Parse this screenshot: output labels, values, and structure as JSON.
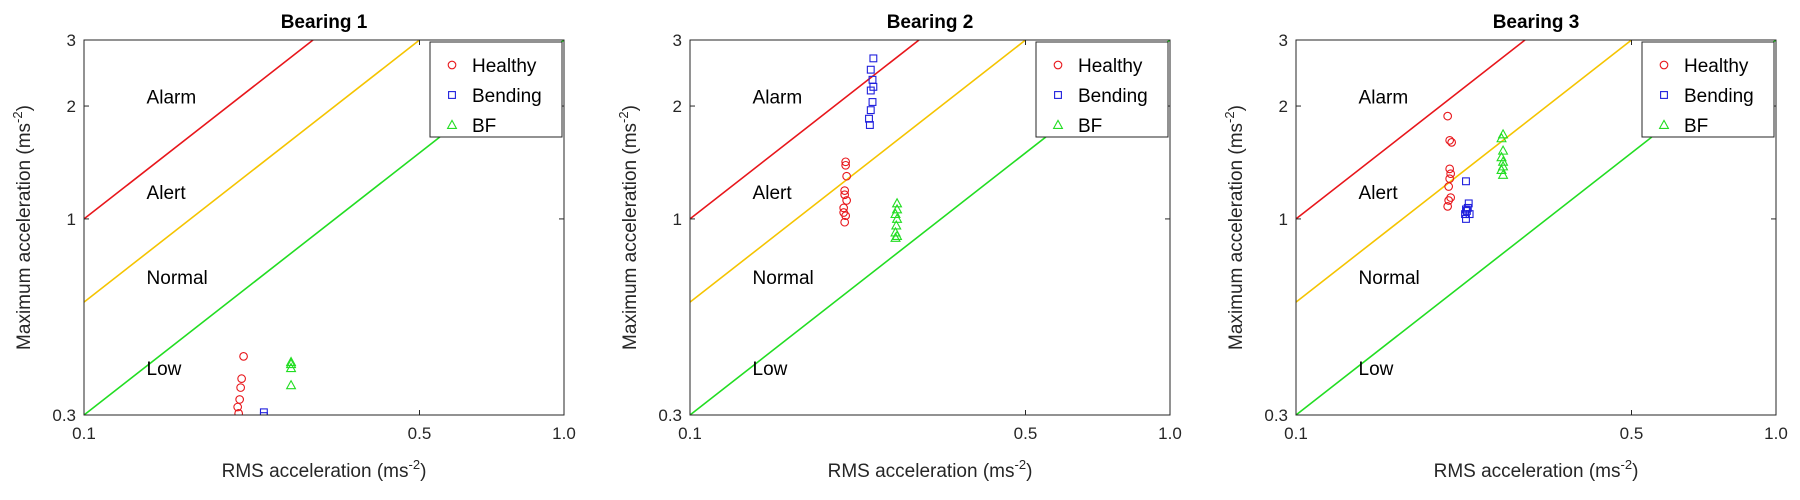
{
  "chart_data": [
    {
      "type": "scatter",
      "title": "Bearing 1",
      "xlabel": "RMS acceleration (ms",
      "ylabel": "Maximum acceleration (ms",
      "unit_exponent": "-2",
      "x_scale": "log",
      "y_scale": "log",
      "xlim": [
        0.1,
        1.0
      ],
      "ylim": [
        0.3,
        3
      ],
      "x_ticks": [
        0.1,
        0.5,
        1.0
      ],
      "x_tick_labels": [
        "0.1",
        "0.5",
        "1.0"
      ],
      "y_ticks": [
        0.3,
        1,
        2,
        3
      ],
      "y_tick_labels": [
        "0.3",
        "1",
        "2",
        "3"
      ],
      "legend_position": "top-right",
      "zone_labels": [
        {
          "text": "Alarm",
          "x": 0.135,
          "y": 2.12
        },
        {
          "text": "Alert",
          "x": 0.135,
          "y": 1.18
        },
        {
          "text": "Normal",
          "x": 0.135,
          "y": 0.7
        },
        {
          "text": "Low",
          "x": 0.135,
          "y": 0.4
        }
      ],
      "threshold_lines": [
        {
          "name": "alarm",
          "color": "#e8161b",
          "x": [
            0.1,
            0.3
          ],
          "y": [
            1.0,
            3.0
          ]
        },
        {
          "name": "alert",
          "color": "#f5c400",
          "x": [
            0.1,
            0.5
          ],
          "y": [
            0.6,
            3.0
          ]
        },
        {
          "name": "normal",
          "color": "#22dd22",
          "x": [
            0.1,
            1.0
          ],
          "y": [
            0.3,
            3.0
          ]
        }
      ],
      "series": [
        {
          "name": "Healthy",
          "marker": "circle",
          "color": "#e8161b",
          "x": [
            0.215,
            0.213,
            0.212,
            0.211,
            0.209,
            0.21
          ],
          "y": [
            0.43,
            0.375,
            0.355,
            0.33,
            0.315,
            0.303
          ]
        },
        {
          "name": "Bending",
          "marker": "square",
          "color": "#1f1fdd",
          "x": [
            0.237,
            0.237
          ],
          "y": [
            0.305,
            0.298
          ]
        },
        {
          "name": "BF",
          "marker": "triangle",
          "color": "#22dd22",
          "x": [
            0.27,
            0.27,
            0.27,
            0.27
          ],
          "y": [
            0.415,
            0.41,
            0.4,
            0.36
          ]
        }
      ]
    },
    {
      "type": "scatter",
      "title": "Bearing 2",
      "xlabel": "RMS acceleration (ms",
      "ylabel": "Maximum acceleration (ms",
      "unit_exponent": "-2",
      "x_scale": "log",
      "y_scale": "log",
      "xlim": [
        0.1,
        1.0
      ],
      "ylim": [
        0.3,
        3
      ],
      "x_ticks": [
        0.1,
        0.5,
        1.0
      ],
      "x_tick_labels": [
        "0.1",
        "0.5",
        "1.0"
      ],
      "y_ticks": [
        0.3,
        1,
        2,
        3
      ],
      "y_tick_labels": [
        "0.3",
        "1",
        "2",
        "3"
      ],
      "legend_position": "top-right",
      "zone_labels": [
        {
          "text": "Alarm",
          "x": 0.135,
          "y": 2.12
        },
        {
          "text": "Alert",
          "x": 0.135,
          "y": 1.18
        },
        {
          "text": "Normal",
          "x": 0.135,
          "y": 0.7
        },
        {
          "text": "Low",
          "x": 0.135,
          "y": 0.4
        }
      ],
      "threshold_lines": [
        {
          "name": "alarm",
          "color": "#e8161b",
          "x": [
            0.1,
            0.3
          ],
          "y": [
            1.0,
            3.0
          ]
        },
        {
          "name": "alert",
          "color": "#f5c400",
          "x": [
            0.1,
            0.5
          ],
          "y": [
            0.6,
            3.0
          ]
        },
        {
          "name": "normal",
          "color": "#22dd22",
          "x": [
            0.1,
            1.0
          ],
          "y": [
            0.3,
            3.0
          ]
        }
      ],
      "series": [
        {
          "name": "Healthy",
          "marker": "circle",
          "color": "#e8161b",
          "x": [
            0.211,
            0.211,
            0.212,
            0.21,
            0.21,
            0.212,
            0.209,
            0.209,
            0.211,
            0.21
          ],
          "y": [
            1.42,
            1.39,
            1.3,
            1.19,
            1.16,
            1.12,
            1.07,
            1.04,
            1.02,
            0.98
          ]
        },
        {
          "name": "Bending",
          "marker": "square",
          "color": "#1f1fdd",
          "x": [
            0.241,
            0.238,
            0.24,
            0.241,
            0.238,
            0.24,
            0.238,
            0.236,
            0.237
          ],
          "y": [
            2.68,
            2.5,
            2.35,
            2.25,
            2.2,
            2.05,
            1.95,
            1.85,
            1.78
          ]
        },
        {
          "name": "BF",
          "marker": "triangle",
          "color": "#22dd22",
          "x": [
            0.27,
            0.27,
            0.268,
            0.27,
            0.269,
            0.268,
            0.27,
            0.268
          ],
          "y": [
            1.1,
            1.06,
            1.03,
            1.0,
            0.96,
            0.92,
            0.9,
            0.89
          ]
        }
      ]
    },
    {
      "type": "scatter",
      "title": "Bearing 3",
      "xlabel": "RMS acceleration (ms",
      "ylabel": "Maximum acceleration (ms",
      "unit_exponent": "-2",
      "x_scale": "log",
      "y_scale": "log",
      "xlim": [
        0.1,
        1.0
      ],
      "ylim": [
        0.3,
        3
      ],
      "x_ticks": [
        0.1,
        0.5,
        1.0
      ],
      "x_tick_labels": [
        "0.1",
        "0.5",
        "1.0"
      ],
      "y_ticks": [
        0.3,
        1,
        2,
        3
      ],
      "y_tick_labels": [
        "0.3",
        "1",
        "2",
        "3"
      ],
      "legend_position": "top-right",
      "zone_labels": [
        {
          "text": "Alarm",
          "x": 0.135,
          "y": 2.12
        },
        {
          "text": "Alert",
          "x": 0.135,
          "y": 1.18
        },
        {
          "text": "Normal",
          "x": 0.135,
          "y": 0.7
        },
        {
          "text": "Low",
          "x": 0.135,
          "y": 0.4
        }
      ],
      "threshold_lines": [
        {
          "name": "alarm",
          "color": "#e8161b",
          "x": [
            0.1,
            0.3
          ],
          "y": [
            1.0,
            3.0
          ]
        },
        {
          "name": "alert",
          "color": "#f5c400",
          "x": [
            0.1,
            0.5
          ],
          "y": [
            0.6,
            3.0
          ]
        },
        {
          "name": "normal",
          "color": "#22dd22",
          "x": [
            0.1,
            1.0
          ],
          "y": [
            0.3,
            3.0
          ]
        }
      ],
      "series": [
        {
          "name": "Healthy",
          "marker": "circle",
          "color": "#e8161b",
          "x": [
            0.207,
            0.209,
            0.211,
            0.209,
            0.21,
            0.209,
            0.208,
            0.21,
            0.208,
            0.207
          ],
          "y": [
            1.88,
            1.62,
            1.6,
            1.36,
            1.32,
            1.28,
            1.22,
            1.14,
            1.12,
            1.08
          ]
        },
        {
          "name": "Bending",
          "marker": "square",
          "color": "#1f1fdd",
          "x": [
            0.226,
            0.229,
            0.228,
            0.226,
            0.227,
            0.225,
            0.23,
            0.226
          ],
          "y": [
            1.26,
            1.1,
            1.07,
            1.06,
            1.05,
            1.03,
            1.03,
            1.0
          ]
        },
        {
          "name": "BF",
          "marker": "triangle",
          "color": "#22dd22",
          "x": [
            0.27,
            0.268,
            0.27,
            0.268,
            0.27,
            0.27,
            0.268,
            0.27
          ],
          "y": [
            1.68,
            1.64,
            1.52,
            1.46,
            1.42,
            1.38,
            1.35,
            1.31
          ]
        }
      ]
    }
  ]
}
